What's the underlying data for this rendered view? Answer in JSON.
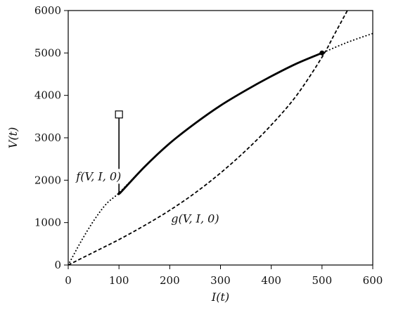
{
  "chart_data": {
    "type": "line",
    "xlabel": "I(t)",
    "ylabel": "V(t)",
    "xlim": [
      0,
      600
    ],
    "ylim": [
      0,
      6000
    ],
    "xticks": [
      0,
      100,
      200,
      300,
      400,
      500,
      600
    ],
    "yticks": [
      0,
      1000,
      2000,
      3000,
      4000,
      5000,
      6000
    ],
    "grid": false,
    "series": [
      {
        "style": "dotted",
        "color": "#000000",
        "x": [
          0,
          25,
          50,
          75,
          100,
          150,
          200,
          250,
          300,
          350,
          400,
          450,
          500,
          550,
          600
        ],
        "y": [
          0,
          550,
          1040,
          1440,
          1700,
          2310,
          2870,
          3340,
          3760,
          4120,
          4450,
          4750,
          5000,
          5250,
          5460
        ]
      },
      {
        "style": "dashed",
        "color": "#000000",
        "x": [
          0,
          50,
          100,
          150,
          200,
          250,
          300,
          350,
          400,
          450,
          500,
          525,
          550
        ],
        "y": [
          0,
          300,
          600,
          930,
          1290,
          1700,
          2170,
          2700,
          3300,
          4000,
          4900,
          5450,
          6000
        ]
      },
      {
        "style": "solid-thick",
        "color": "#000000",
        "x": [
          100,
          104,
          150,
          200,
          250,
          300,
          350,
          400,
          450,
          500
        ],
        "y": [
          1700,
          1720,
          2310,
          2870,
          3340,
          3760,
          4120,
          4450,
          4750,
          5000
        ]
      },
      {
        "style": "solid-thin",
        "color": "#000000",
        "x": [
          100,
          100
        ],
        "y": [
          3550,
          1700
        ]
      }
    ],
    "markers": [
      {
        "label": "start",
        "shape": "open-square",
        "x": 100,
        "y": 3550
      },
      {
        "label": "equilibrium",
        "shape": "filled-dot",
        "x": 500,
        "y": 5000
      }
    ],
    "annotations": [
      {
        "text": "f(V, I, 0)",
        "x": 60,
        "y": 2000
      },
      {
        "text": "g(V, I, 0)",
        "x": 250,
        "y": 1000
      }
    ]
  }
}
